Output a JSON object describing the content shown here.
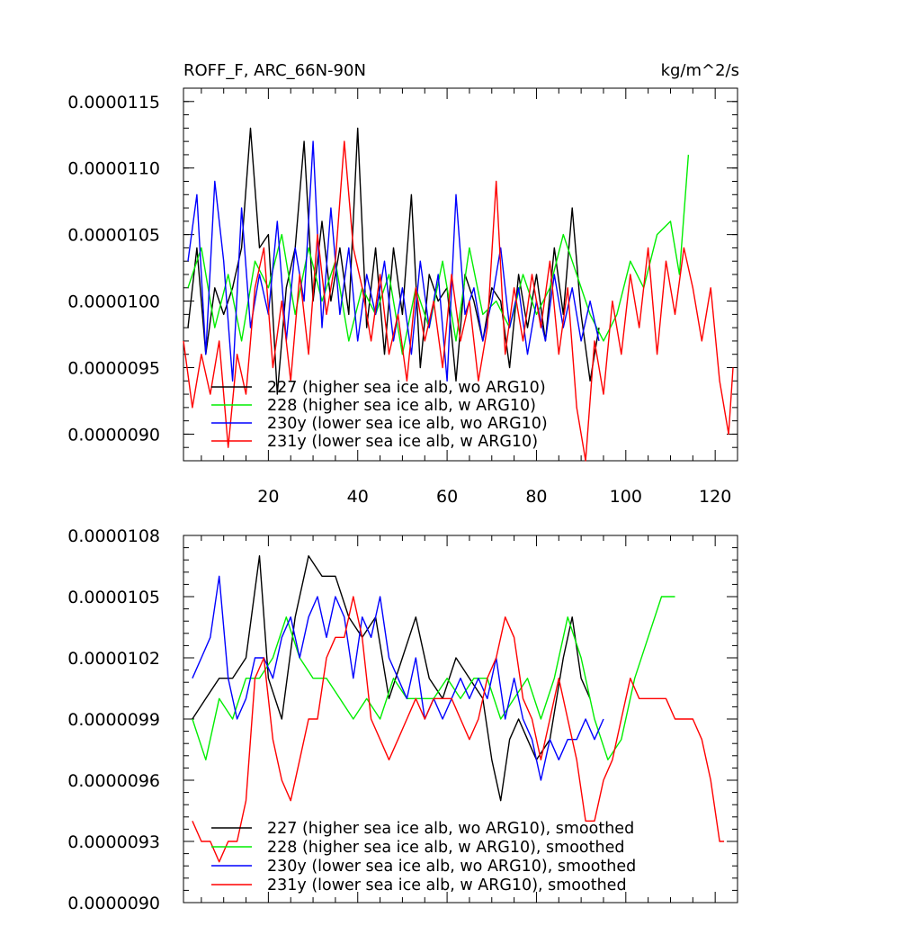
{
  "page": {
    "title": "ROFF_F, ARC_66N-90N",
    "units": "kg/m^2/s"
  },
  "colors": {
    "s227": "#000000",
    "s228": "#00ee00",
    "s230y": "#0000ff",
    "s231y": "#ff0000"
  },
  "chart_data": [
    {
      "type": "line",
      "title": "ROFF_F, ARC_66N-90N",
      "units": "kg/m^2/s",
      "xlim": [
        1,
        125
      ],
      "ylim": [
        8.8e-06,
        1.16e-05
      ],
      "xticks": [
        20,
        40,
        60,
        80,
        100,
        120
      ],
      "xtick_labels": [
        "20",
        "40",
        "60",
        "80",
        "100",
        "120"
      ],
      "yticks": [
        1.15e-05,
        1.1e-05,
        1.05e-05,
        1e-05,
        9.5e-06,
        9e-06
      ],
      "ytick_labels": [
        "0.0000115",
        "0.0000110",
        "0.0000105",
        "0.0000100",
        "0.0000095",
        "0.0000090"
      ],
      "legend_position": "bottom-left",
      "series": [
        {
          "name": "227 (higher sea ice alb, wo ARG10)",
          "color_key": "s227",
          "x": [
            2,
            4,
            6,
            8,
            10,
            12,
            14,
            16,
            18,
            20,
            22,
            24,
            26,
            28,
            30,
            32,
            34,
            36,
            38,
            40,
            42,
            44,
            46,
            48,
            50,
            52,
            54,
            56,
            58,
            60,
            62,
            64,
            66,
            68,
            70,
            72,
            74,
            76,
            78,
            80,
            82,
            84,
            86,
            88,
            90,
            92,
            94
          ],
          "y": [
            9.8e-06,
            1.04e-05,
            9.6e-06,
            1.01e-05,
            9.9e-06,
            1.01e-05,
            1.04e-05,
            1.13e-05,
            1.04e-05,
            1.05e-05,
            9.3e-06,
            1.01e-05,
            1.04e-05,
            1.12e-05,
            1e-05,
            1.06e-05,
            1e-05,
            1.04e-05,
            9.9e-06,
            1.13e-05,
            9.8e-06,
            1.04e-05,
            9.6e-06,
            1.04e-05,
            9.9e-06,
            1.08e-05,
            9.5e-06,
            1.02e-05,
            1e-05,
            1.01e-05,
            9.4e-06,
            1.02e-05,
            1e-05,
            9.7e-06,
            1.01e-05,
            1e-05,
            9.5e-06,
            1.02e-05,
            9.8e-06,
            1.02e-05,
            9.7e-06,
            1.04e-05,
            9.9e-06,
            1.07e-05,
            9.9e-06,
            9.4e-06,
            9.8e-06
          ]
        },
        {
          "name": "228 (higher sea ice alb, w ARG10)",
          "color_key": "s228",
          "x": [
            2,
            5,
            8,
            11,
            14,
            17,
            20,
            23,
            26,
            29,
            32,
            35,
            38,
            41,
            44,
            47,
            50,
            53,
            56,
            59,
            62,
            65,
            68,
            71,
            74,
            77,
            80,
            83,
            86,
            89,
            92,
            95,
            98,
            101,
            104,
            107,
            110,
            112,
            114
          ],
          "y": [
            1.01e-05,
            1.04e-05,
            9.8e-06,
            1.02e-05,
            9.7e-06,
            1.03e-05,
            1.01e-05,
            1.05e-05,
            9.9e-06,
            1.04e-05,
            1e-05,
            1.03e-05,
            9.7e-06,
            1.01e-05,
            9.9e-06,
            1.02e-05,
            9.6e-06,
            1.01e-05,
            9.8e-06,
            1.03e-05,
            9.7e-06,
            1.04e-05,
            9.9e-06,
            1e-05,
            9.8e-06,
            1.02e-05,
            9.9e-06,
            1.01e-05,
            1.05e-05,
            1.02e-05,
            9.9e-06,
            9.7e-06,
            9.9e-06,
            1.03e-05,
            1.01e-05,
            1.05e-05,
            1.06e-05,
            1.02e-05,
            1.11e-05
          ]
        },
        {
          "name": "230y (lower sea ice alb, wo ARG10)",
          "color_key": "s230y",
          "x": [
            2,
            4,
            6,
            8,
            10,
            12,
            14,
            16,
            18,
            20,
            22,
            24,
            26,
            28,
            30,
            32,
            34,
            36,
            38,
            40,
            42,
            44,
            46,
            48,
            50,
            52,
            54,
            56,
            58,
            60,
            62,
            64,
            66,
            68,
            70,
            72,
            74,
            76,
            78,
            80,
            82,
            84,
            86,
            88,
            90,
            92,
            94
          ],
          "y": [
            1.03e-05,
            1.08e-05,
            9.6e-06,
            1.09e-05,
            1.03e-05,
            9.4e-06,
            1.07e-05,
            9.8e-06,
            1.02e-05,
            9.9e-06,
            1.06e-05,
            9.7e-06,
            1.04e-05,
            1e-05,
            1.12e-05,
            9.8e-06,
            1.07e-05,
            9.9e-06,
            1.04e-05,
            9.7e-06,
            1.02e-05,
            9.9e-06,
            1.03e-05,
            9.7e-06,
            1.01e-05,
            9.6e-06,
            1.03e-05,
            9.8e-06,
            1.02e-05,
            9.4e-06,
            1.08e-05,
            9.9e-06,
            1.01e-05,
            9.7e-06,
            1e-05,
            1.04e-05,
            9.8e-06,
            1.01e-05,
            9.6e-06,
            1e-05,
            9.7e-06,
            1.02e-05,
            9.8e-06,
            1.01e-05,
            9.7e-06,
            1e-05,
            9.7e-06
          ]
        },
        {
          "name": "231y (lower sea ice alb, w ARG10)",
          "color_key": "s231y",
          "x": [
            1,
            3,
            5,
            7,
            9,
            11,
            13,
            15,
            17,
            19,
            21,
            23,
            25,
            27,
            29,
            31,
            33,
            35,
            37,
            39,
            41,
            43,
            45,
            47,
            49,
            51,
            53,
            55,
            57,
            59,
            61,
            63,
            65,
            67,
            69,
            71,
            73,
            75,
            77,
            79,
            81,
            83,
            85,
            87,
            89,
            91,
            93,
            95,
            97,
            99,
            101,
            103,
            105,
            107,
            109,
            111,
            113,
            115,
            117,
            119,
            121,
            123,
            124
          ],
          "y": [
            9.7e-06,
            9.2e-06,
            9.6e-06,
            9.3e-06,
            9.7e-06,
            8.9e-06,
            9.6e-06,
            9.3e-06,
            1.01e-05,
            1.04e-05,
            9.5e-06,
            1e-05,
            9.4e-06,
            1.02e-05,
            9.6e-06,
            1.05e-05,
            9.9e-06,
            1.03e-05,
            1.12e-05,
            1.04e-05,
            1.01e-05,
            9.7e-06,
            1.02e-05,
            9.6e-06,
            9.9e-06,
            9.4e-06,
            1.01e-05,
            9.7e-06,
            1e-05,
            9.5e-06,
            1.02e-05,
            9.7e-06,
            1e-05,
            9.4e-06,
            9.8e-06,
            1.09e-05,
            9.6e-06,
            1.01e-05,
            9.7e-06,
            1.02e-05,
            9.8e-06,
            1.03e-05,
            9.6e-06,
            1.01e-05,
            9.2e-06,
            8.8e-06,
            9.7e-06,
            9.3e-06,
            1e-05,
            9.6e-06,
            1.02e-05,
            9.8e-06,
            1.04e-05,
            9.6e-06,
            1.03e-05,
            9.9e-06,
            1.04e-05,
            1.01e-05,
            9.7e-06,
            1.01e-05,
            9.4e-06,
            9e-06,
            9.5e-06
          ]
        }
      ]
    },
    {
      "type": "line",
      "xlim": [
        1,
        125
      ],
      "ylim": [
        9e-06,
        1.08e-05
      ],
      "xticks": [
        20,
        40,
        60,
        80,
        100,
        120
      ],
      "yticks": [
        1.08e-05,
        1.05e-05,
        1.02e-05,
        9.9e-06,
        9.6e-06,
        9.3e-06,
        9e-06
      ],
      "ytick_labels": [
        "0.0000108",
        "0.0000105",
        "0.0000102",
        "0.0000099",
        "0.0000096",
        "0.0000093",
        "0.0000090"
      ],
      "legend_position": "bottom-left",
      "series": [
        {
          "name": "227 (higher sea ice alb, wo ARG10), smoothed",
          "color_key": "s227",
          "x": [
            3,
            6,
            9,
            12,
            15,
            18,
            20,
            23,
            26,
            29,
            32,
            35,
            38,
            41,
            44,
            47,
            50,
            53,
            56,
            59,
            62,
            65,
            68,
            70,
            72,
            74,
            76,
            78,
            80,
            83,
            86,
            88,
            90,
            92
          ],
          "y": [
            9.9e-06,
            1e-05,
            1.01e-05,
            1.01e-05,
            1.02e-05,
            1.07e-05,
            1.01e-05,
            9.9e-06,
            1.04e-05,
            1.07e-05,
            1.06e-05,
            1.06e-05,
            1.04e-05,
            1.03e-05,
            1.04e-05,
            1e-05,
            1.02e-05,
            1.04e-05,
            1.01e-05,
            1e-05,
            1.02e-05,
            1.01e-05,
            1e-05,
            9.7e-06,
            9.5e-06,
            9.8e-06,
            9.9e-06,
            9.8e-06,
            9.7e-06,
            9.8e-06,
            1.02e-05,
            1.04e-05,
            1.01e-05,
            1e-05
          ]
        },
        {
          "name": "228 (higher sea ice alb, w ARG10), smoothed",
          "color_key": "s228",
          "x": [
            3,
            6,
            9,
            12,
            15,
            18,
            21,
            24,
            27,
            30,
            33,
            36,
            39,
            42,
            45,
            48,
            51,
            54,
            57,
            60,
            63,
            66,
            69,
            72,
            75,
            78,
            81,
            84,
            87,
            90,
            93,
            96,
            99,
            102,
            105,
            108,
            111
          ],
          "y": [
            9.9e-06,
            9.7e-06,
            1e-05,
            9.9e-06,
            1.01e-05,
            1.01e-05,
            1.02e-05,
            1.04e-05,
            1.02e-05,
            1.01e-05,
            1.01e-05,
            1e-05,
            9.9e-06,
            1e-05,
            9.9e-06,
            1.01e-05,
            1e-05,
            1e-05,
            1e-05,
            1.01e-05,
            1e-05,
            1.01e-05,
            1.01e-05,
            9.9e-06,
            1e-05,
            1.01e-05,
            9.9e-06,
            1.01e-05,
            1.04e-05,
            1.02e-05,
            9.9e-06,
            9.7e-06,
            9.8e-06,
            1.01e-05,
            1.03e-05,
            1.05e-05,
            1.05e-05
          ]
        },
        {
          "name": "230y (lower sea ice alb, wo ARG10), smoothed",
          "color_key": "s230y",
          "x": [
            3,
            5,
            7,
            9,
            11,
            13,
            15,
            17,
            19,
            21,
            23,
            25,
            27,
            29,
            31,
            33,
            35,
            37,
            39,
            41,
            43,
            45,
            47,
            49,
            51,
            53,
            55,
            57,
            59,
            61,
            63,
            65,
            67,
            69,
            71,
            73,
            75,
            77,
            79,
            81,
            83,
            85,
            87,
            89,
            91,
            93,
            95
          ],
          "y": [
            1.01e-05,
            1.02e-05,
            1.03e-05,
            1.06e-05,
            1.01e-05,
            9.9e-06,
            1e-05,
            1.02e-05,
            1.02e-05,
            1.01e-05,
            1.03e-05,
            1.04e-05,
            1.02e-05,
            1.04e-05,
            1.05e-05,
            1.03e-05,
            1.05e-05,
            1.04e-05,
            1.01e-05,
            1.04e-05,
            1.03e-05,
            1.05e-05,
            1.02e-05,
            1.01e-05,
            1e-05,
            1.02e-05,
            9.9e-06,
            1e-05,
            9.9e-06,
            1e-05,
            1.01e-05,
            1e-05,
            1.01e-05,
            1e-05,
            1.02e-05,
            9.9e-06,
            1.01e-05,
            9.9e-06,
            9.8e-06,
            9.6e-06,
            9.8e-06,
            9.7e-06,
            9.8e-06,
            9.8e-06,
            9.9e-06,
            9.8e-06,
            9.9e-06
          ]
        },
        {
          "name": "231y (lower sea ice alb, w ARG10), smoothed",
          "color_key": "s231y",
          "x": [
            3,
            5,
            7,
            9,
            11,
            13,
            15,
            17,
            19,
            21,
            23,
            25,
            27,
            29,
            31,
            33,
            35,
            37,
            39,
            41,
            43,
            45,
            47,
            49,
            51,
            53,
            55,
            57,
            59,
            61,
            63,
            65,
            67,
            69,
            71,
            73,
            75,
            77,
            79,
            81,
            83,
            85,
            87,
            89,
            91,
            93,
            95,
            97,
            99,
            101,
            103,
            105,
            107,
            109,
            111,
            113,
            115,
            117,
            119,
            121,
            122
          ],
          "y": [
            9.4e-06,
            9.3e-06,
            9.3e-06,
            9.2e-06,
            9.3e-06,
            9.3e-06,
            9.5e-06,
            1.01e-05,
            1.02e-05,
            9.8e-06,
            9.6e-06,
            9.5e-06,
            9.7e-06,
            9.9e-06,
            9.9e-06,
            1.02e-05,
            1.03e-05,
            1.03e-05,
            1.05e-05,
            1.03e-05,
            9.9e-06,
            9.8e-06,
            9.7e-06,
            9.8e-06,
            9.9e-06,
            1e-05,
            9.9e-06,
            1e-05,
            1e-05,
            1e-05,
            9.9e-06,
            9.8e-06,
            9.9e-06,
            1.01e-05,
            1.02e-05,
            1.04e-05,
            1.03e-05,
            1e-05,
            9.9e-06,
            9.7e-06,
            9.9e-06,
            1.01e-05,
            9.9e-06,
            9.7e-06,
            9.4e-06,
            9.4e-06,
            9.6e-06,
            9.7e-06,
            9.9e-06,
            1.01e-05,
            1e-05,
            1e-05,
            1e-05,
            1e-05,
            9.9e-06,
            9.9e-06,
            9.9e-06,
            9.8e-06,
            9.6e-06,
            9.3e-06,
            9.3e-06
          ]
        }
      ]
    }
  ]
}
